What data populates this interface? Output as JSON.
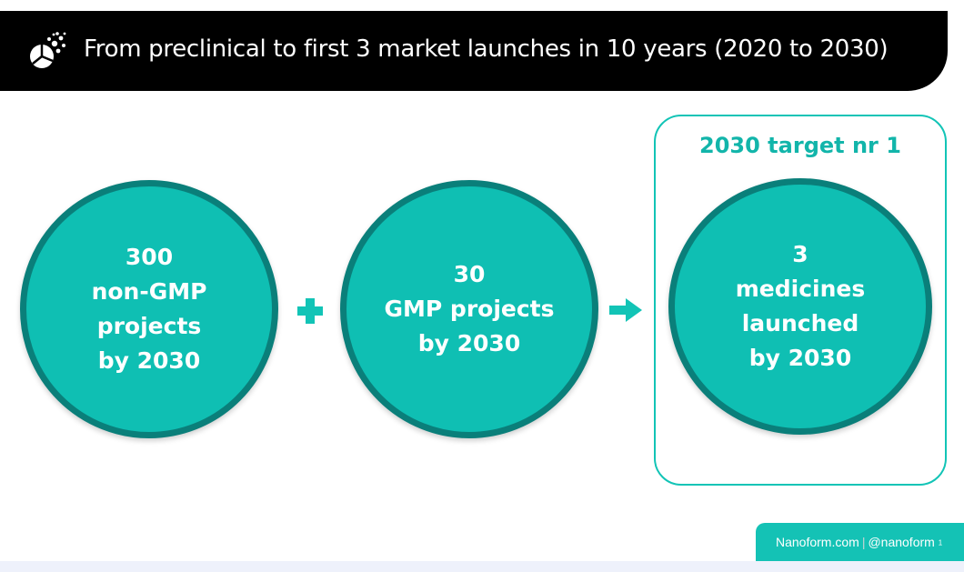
{
  "title": "From preclinical to first 3 market launches in 10 years (2020 to 2030)",
  "logo_icon": "nanoform-logo-icon",
  "circles": [
    {
      "text": "300\nnon-GMP\nprojects\nby 2030"
    },
    {
      "text": "30\nGMP projects\nby 2030"
    },
    {
      "text": "3\nmedicines\nlaunched\nby 2030"
    }
  ],
  "operators": {
    "plus_icon": "plus-icon",
    "arrow_icon": "arrow-right-icon"
  },
  "target_box": {
    "title": "2030 target nr 1"
  },
  "footer": {
    "website": "Nanoform.com",
    "separator": "|",
    "handle": "@nanoform",
    "page_number": "1"
  },
  "colors": {
    "accent": "#0fbfb3",
    "circle_border": "#0a7f7a",
    "title_bar": "#000000",
    "text_on_accent": "#ffffff"
  }
}
